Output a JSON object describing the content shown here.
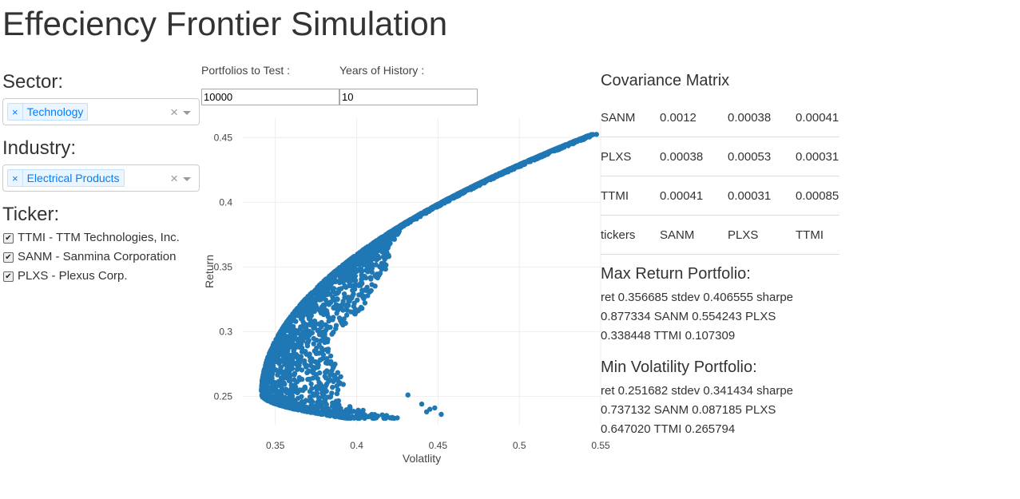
{
  "page": {
    "title": "Effeciency Frontier Simulation"
  },
  "sector": {
    "label": "Sector:",
    "selected": "Technology",
    "remove_glyph": "×",
    "clear_glyph": "×"
  },
  "industry": {
    "label": "Industry:",
    "selected": "Electrical Products",
    "remove_glyph": "×",
    "clear_glyph": "×"
  },
  "ticker": {
    "label": "Ticker:",
    "items": [
      {
        "label": "TTMI - TTM Technologies, Inc.",
        "checked": true
      },
      {
        "label": "SANM - Sanmina Corporation",
        "checked": true
      },
      {
        "label": "PLXS - Plexus Corp.",
        "checked": true
      }
    ]
  },
  "controls": {
    "portfolios_label": "Portfolios to Test :",
    "portfolios_value": "10000",
    "years_label": "Years of History :",
    "years_value": "10"
  },
  "chart_data": {
    "type": "scatter",
    "title": "",
    "xlabel": "Volatlity",
    "ylabel": "Return",
    "xlim": [
      0.33,
      0.55
    ],
    "ylim": [
      0.228,
      0.465
    ],
    "xticks": [
      "0.35",
      "0.4",
      "0.45",
      "0.5",
      "0.55"
    ],
    "xtick_values": [
      0.35,
      0.4,
      0.45,
      0.5,
      0.55
    ],
    "yticks": [
      "0.25",
      "0.3",
      "0.35",
      "0.4",
      "0.45"
    ],
    "ytick_values": [
      0.25,
      0.3,
      0.35,
      0.4,
      0.45
    ],
    "grid": true,
    "color": "#1f77b4",
    "frontier": {
      "min_vol_point": [
        0.3414,
        0.2517
      ],
      "max_return_point": [
        0.5445,
        0.4525
      ],
      "lower_return": 0.233,
      "tail_points": [
        [
          0.452,
          0.236
        ],
        [
          0.448,
          0.241
        ],
        [
          0.445,
          0.24
        ],
        [
          0.44,
          0.244
        ],
        [
          0.443,
          0.238
        ],
        [
          0.4315,
          0.251
        ]
      ]
    }
  },
  "covariance": {
    "title": "Covariance Matrix",
    "rows": [
      [
        "SANM",
        "0.0012",
        "0.00038",
        "0.00041"
      ],
      [
        "PLXS",
        "0.00038",
        "0.00053",
        "0.00031"
      ],
      [
        "TTMI",
        "0.00041",
        "0.00031",
        "0.00085"
      ],
      [
        "tickers",
        "SANM",
        "PLXS",
        "TTMI"
      ]
    ]
  },
  "max_return": {
    "title": "Max Return Portfolio:",
    "text": "ret 0.356685 stdev 0.406555 sharpe 0.877334 SANM 0.554243 PLXS 0.338448 TTMI 0.107309"
  },
  "min_volatility": {
    "title": "Min Volatility Portfolio:",
    "text": "ret 0.251682 stdev 0.341434 sharpe 0.737132 SANM 0.087185 PLXS 0.647020 TTMI 0.265794"
  }
}
